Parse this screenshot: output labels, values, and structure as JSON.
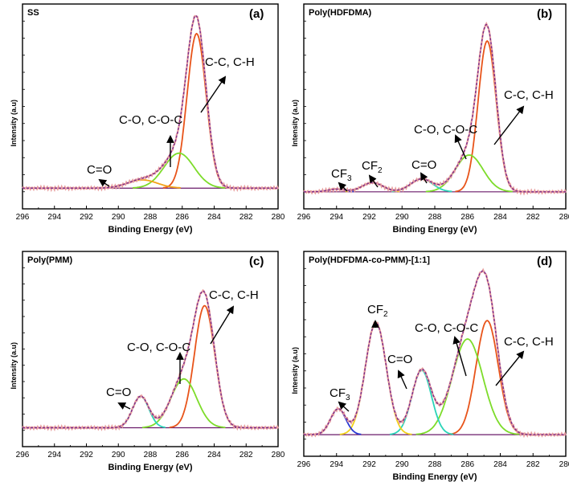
{
  "figure": {
    "x_axis_label": "Binding Energy (eV)",
    "y_axis_label": "Intensity (a.u)"
  },
  "colors": {
    "background": "#ffffff",
    "frame": "#000000",
    "experimental": "#e8a0a0",
    "envelope": "#7a2a8a",
    "baseline": "#6a1a6a",
    "cc_ch": "#e8541a",
    "co_coc": "#7ddc2a",
    "c_eq_o": "#2ad4b8",
    "cf2": "#f2d21a",
    "cf3": "#2a3ad4"
  },
  "chart_data": [
    {
      "panel": "(a)",
      "title": "SS",
      "type": "line",
      "xlabel": "Binding Energy (eV)",
      "ylabel": "Intensity (a.u)",
      "xlim": [
        296,
        280
      ],
      "ylim": [
        0,
        100
      ],
      "x_ticks": [
        "296",
        "294",
        "292",
        "290",
        "288",
        "286",
        "284",
        "282",
        "280"
      ],
      "baseline": 9.5,
      "series": [
        {
          "name": "C-C, C-H",
          "center": 285.1,
          "height": 84,
          "fwhm": 1.4,
          "color": "#e8541a"
        },
        {
          "name": "C-O, C-O-C",
          "center": 286.2,
          "height": 19,
          "fwhm": 2.2,
          "color": "#7ddc2a"
        },
        {
          "name": "C=O",
          "center": 288.5,
          "height": 4.5,
          "fwhm": 2.2,
          "color": "#f2a21a"
        }
      ],
      "annotations": [
        {
          "text": "C-C, C-H",
          "sub": "",
          "peak": "C-C, C-H"
        },
        {
          "text": "C-O, C-O-C",
          "sub": "",
          "peak": "C-O, C-O-C"
        },
        {
          "text": "C=O",
          "sub": "",
          "peak": "C=O"
        }
      ]
    },
    {
      "panel": "(b)",
      "title": "Poly(HDFDMA)",
      "type": "line",
      "xlabel": "Binding Energy (eV)",
      "ylabel": "Intensity (a.u)",
      "xlim": [
        296,
        280
      ],
      "ylim": [
        0,
        100
      ],
      "x_ticks": [
        "296",
        "294",
        "292",
        "290",
        "288",
        "286",
        "284",
        "282",
        "280"
      ],
      "baseline": 7.5,
      "series": [
        {
          "name": "C-C, C-H",
          "center": 284.8,
          "height": 82,
          "fwhm": 1.3,
          "color": "#e8541a"
        },
        {
          "name": "C-O, C-O-C",
          "center": 285.9,
          "height": 20,
          "fwhm": 2.0,
          "color": "#7ddc2a"
        },
        {
          "name": "C=O",
          "center": 288.8,
          "height": 7,
          "fwhm": 1.6,
          "color": "#2ad4b8"
        },
        {
          "name": "CF2",
          "center": 291.8,
          "height": 5,
          "fwhm": 1.5,
          "color": "#f2d21a"
        },
        {
          "name": "CF3",
          "center": 294.0,
          "height": 1.5,
          "fwhm": 1.2,
          "color": "#2a3ad4"
        }
      ],
      "annotations": [
        {
          "text": "C-C, C-H",
          "sub": "",
          "peak": "C-C, C-H"
        },
        {
          "text": "C-O, C-O-C",
          "sub": "",
          "peak": "C-O, C-O-C"
        },
        {
          "text": "C=O",
          "sub": "",
          "peak": "C=O"
        },
        {
          "text": "CF",
          "sub": "2",
          "peak": "CF2"
        },
        {
          "text": "CF",
          "sub": "3",
          "peak": "CF3"
        }
      ]
    },
    {
      "panel": "(c)",
      "title": "Poly(PMM)",
      "type": "line",
      "xlabel": "Binding Energy (eV)",
      "ylabel": "Intensity (a.u)",
      "xlim": [
        296,
        280
      ],
      "ylim": [
        0,
        100
      ],
      "x_ticks": [
        "296",
        "294",
        "292",
        "290",
        "288",
        "286",
        "284",
        "282",
        "280"
      ],
      "baseline": 9.0,
      "series": [
        {
          "name": "C-C, C-H",
          "center": 284.6,
          "height": 70,
          "fwhm": 1.5,
          "color": "#e8541a"
        },
        {
          "name": "C-O, C-O-C",
          "center": 285.9,
          "height": 28,
          "fwhm": 1.9,
          "color": "#7ddc2a"
        },
        {
          "name": "C=O",
          "center": 288.6,
          "height": 18,
          "fwhm": 1.2,
          "color": "#2ad4b8"
        }
      ],
      "annotations": [
        {
          "text": "C-C, C-H",
          "sub": "",
          "peak": "C-C, C-H"
        },
        {
          "text": "C-O, C-O-C",
          "sub": "",
          "peak": "C-O, C-O-C"
        },
        {
          "text": "C=O",
          "sub": "",
          "peak": "C=O"
        }
      ]
    },
    {
      "panel": "(d)",
      "title": "Poly(HDFDMA-co-PMM)-[1:1]",
      "type": "line",
      "xlabel": "Binding Energy (eV)",
      "ylabel": "Intensity (a.u)",
      "xlim": [
        296,
        280
      ],
      "ylim": [
        0,
        100
      ],
      "x_ticks": [
        "296",
        "294",
        "292",
        "290",
        "288",
        "286",
        "284",
        "282",
        "280"
      ],
      "baseline": 10.0,
      "series": [
        {
          "name": "C-C, C-H",
          "center": 284.8,
          "height": 62,
          "fwhm": 1.6,
          "color": "#e8541a"
        },
        {
          "name": "C-O, C-O-C",
          "center": 286.0,
          "height": 52,
          "fwhm": 2.2,
          "color": "#7ddc2a"
        },
        {
          "name": "C=O",
          "center": 288.8,
          "height": 35,
          "fwhm": 1.4,
          "color": "#2ad4b8"
        },
        {
          "name": "CF2",
          "center": 291.6,
          "height": 61,
          "fwhm": 1.5,
          "color": "#f2d21a"
        },
        {
          "name": "CF3",
          "center": 293.9,
          "height": 14,
          "fwhm": 1.1,
          "color": "#2a3ad4"
        }
      ],
      "annotations": [
        {
          "text": "C-C, C-H",
          "sub": "",
          "peak": "C-C, C-H"
        },
        {
          "text": "C-O, C-O-C",
          "sub": "",
          "peak": "C-O, C-O-C"
        },
        {
          "text": "C=O",
          "sub": "",
          "peak": "C=O"
        },
        {
          "text": "CF",
          "sub": "2",
          "peak": "CF2"
        },
        {
          "text": "CF",
          "sub": "3",
          "peak": "CF3"
        }
      ]
    }
  ]
}
